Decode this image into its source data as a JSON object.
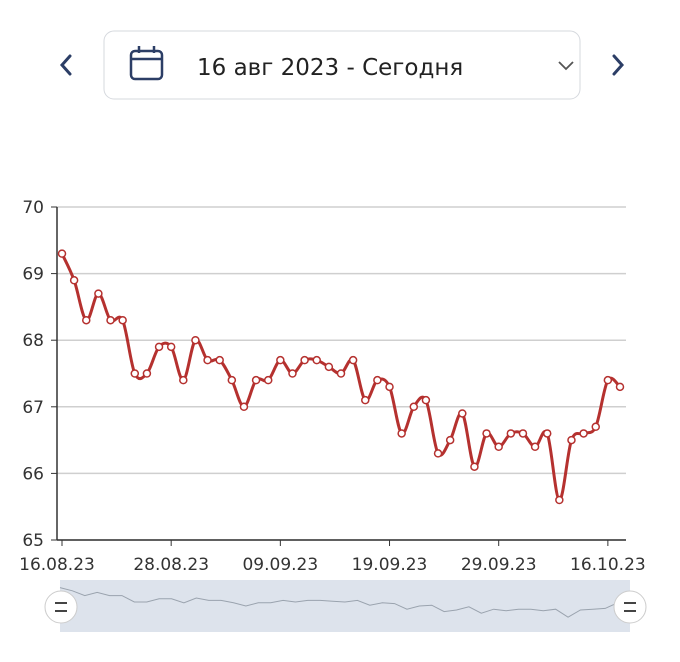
{
  "header": {
    "date_range": "16 авг 2023 - Сегодня"
  },
  "chart_data": {
    "type": "line",
    "categories": [
      "16.08.23",
      null,
      null,
      null,
      null,
      null,
      null,
      null,
      null,
      "28.08.23",
      null,
      null,
      null,
      null,
      null,
      null,
      null,
      null,
      "09.09.23",
      null,
      null,
      null,
      null,
      null,
      null,
      null,
      null,
      "19.09.23",
      null,
      null,
      null,
      null,
      null,
      null,
      null,
      null,
      "29.09.23",
      null,
      null,
      null,
      null,
      null,
      null,
      null,
      null,
      "16.10.23",
      null
    ],
    "series": [
      {
        "color": "#b5312f",
        "values": [
          69.3,
          68.9,
          68.3,
          68.7,
          68.3,
          68.3,
          67.5,
          67.5,
          67.9,
          67.9,
          67.4,
          68.0,
          67.7,
          67.7,
          67.4,
          67.0,
          67.4,
          67.4,
          67.7,
          67.5,
          67.7,
          67.7,
          67.6,
          67.5,
          67.7,
          67.1,
          67.4,
          67.3,
          66.6,
          67.0,
          67.1,
          66.3,
          66.5,
          66.9,
          66.1,
          66.6,
          66.4,
          66.6,
          66.6,
          66.4,
          66.6,
          65.6,
          66.5,
          66.6,
          66.7,
          67.4,
          67.3
        ]
      }
    ],
    "ylim": [
      65,
      70
    ],
    "yticks": [
      65,
      66,
      67,
      68,
      69,
      70
    ],
    "grid": true
  }
}
